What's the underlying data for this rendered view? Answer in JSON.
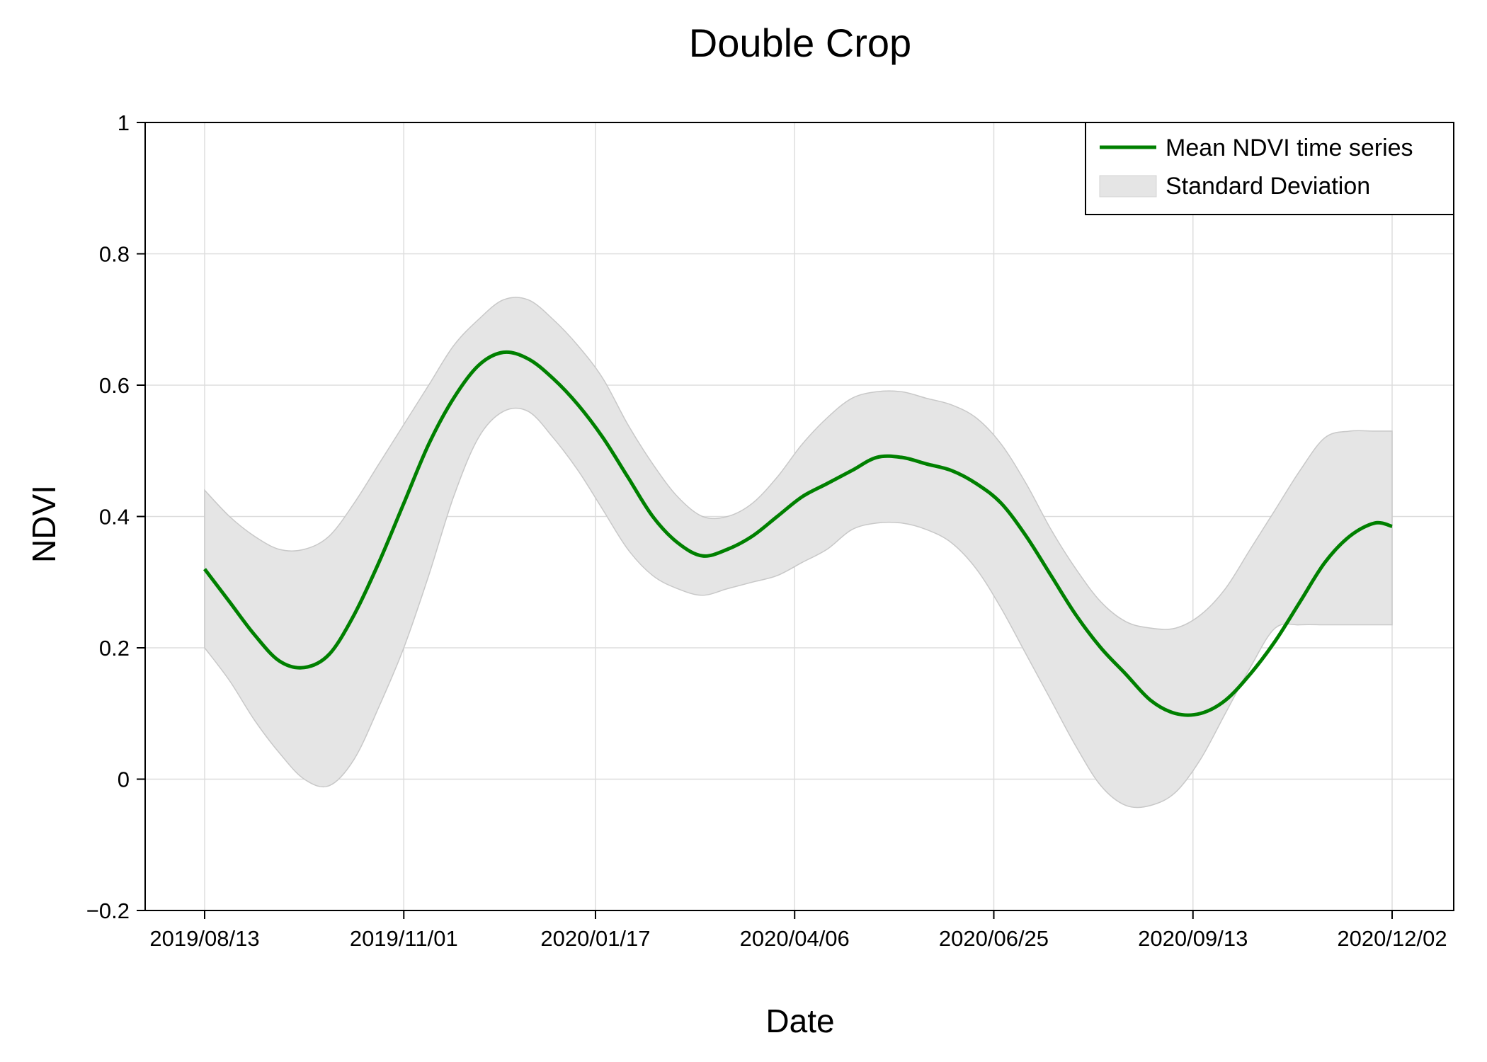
{
  "chart_data": {
    "type": "line",
    "title": "Double Crop",
    "xlabel": "Date",
    "ylabel": "NDVI",
    "ylim": [
      -0.2,
      1
    ],
    "y_ticks": [
      -0.2,
      0,
      0.2,
      0.4,
      0.6,
      0.8,
      1
    ],
    "y_tick_labels": [
      "−0.2",
      "0",
      "0.2",
      "0.4",
      "0.6",
      "0.8",
      "1"
    ],
    "x_ticks": [
      "2019/08/13",
      "2019/11/01",
      "2020/01/17",
      "2020/04/06",
      "2020/06/25",
      "2020/09/13",
      "2020/12/02"
    ],
    "grid": true,
    "legend_position": "top-right",
    "legend": [
      "Mean NDVI time series",
      "Standard Deviation"
    ],
    "colors": {
      "mean": "#008000",
      "band_fill": "#e5e5e5",
      "band_edge": "#c8c8c8",
      "grid": "#dddddd"
    },
    "x": [
      "2019/08/13",
      "2019/08/23",
      "2019/09/02",
      "2019/09/12",
      "2019/09/22",
      "2019/10/02",
      "2019/10/12",
      "2019/10/22",
      "2019/11/01",
      "2019/11/11",
      "2019/11/21",
      "2019/12/01",
      "2019/12/11",
      "2019/12/21",
      "2019/12/31",
      "2020/01/10",
      "2020/01/20",
      "2020/01/30",
      "2020/02/09",
      "2020/02/19",
      "2020/02/29",
      "2020/03/10",
      "2020/03/20",
      "2020/03/30",
      "2020/04/09",
      "2020/04/19",
      "2020/04/29",
      "2020/05/09",
      "2020/05/19",
      "2020/05/29",
      "2020/06/08",
      "2020/06/18",
      "2020/06/28",
      "2020/07/08",
      "2020/07/18",
      "2020/07/28",
      "2020/08/07",
      "2020/08/17",
      "2020/08/27",
      "2020/09/06",
      "2020/09/16",
      "2020/09/26",
      "2020/10/06",
      "2020/10/16",
      "2020/10/26",
      "2020/11/05",
      "2020/11/15",
      "2020/11/25",
      "2020/12/02"
    ],
    "series": [
      {
        "name": "Mean NDVI time series",
        "values": [
          0.32,
          0.27,
          0.22,
          0.18,
          0.17,
          0.19,
          0.25,
          0.33,
          0.42,
          0.51,
          0.58,
          0.63,
          0.65,
          0.64,
          0.61,
          0.57,
          0.52,
          0.46,
          0.4,
          0.36,
          0.34,
          0.35,
          0.37,
          0.4,
          0.43,
          0.45,
          0.47,
          0.49,
          0.49,
          0.48,
          0.47,
          0.45,
          0.42,
          0.37,
          0.31,
          0.25,
          0.2,
          0.16,
          0.12,
          0.1,
          0.1,
          0.12,
          0.16,
          0.21,
          0.27,
          0.33,
          0.37,
          0.39,
          0.385
        ]
      },
      {
        "name": "Standard Deviation",
        "upper": [
          0.44,
          0.4,
          0.37,
          0.35,
          0.35,
          0.37,
          0.42,
          0.48,
          0.54,
          0.6,
          0.66,
          0.7,
          0.73,
          0.73,
          0.7,
          0.66,
          0.61,
          0.54,
          0.48,
          0.43,
          0.4,
          0.4,
          0.42,
          0.46,
          0.51,
          0.55,
          0.58,
          0.59,
          0.59,
          0.58,
          0.57,
          0.55,
          0.51,
          0.45,
          0.38,
          0.32,
          0.27,
          0.24,
          0.23,
          0.23,
          0.25,
          0.29,
          0.35,
          0.41,
          0.47,
          0.52,
          0.53,
          0.53,
          0.53
        ],
        "lower": [
          0.2,
          0.15,
          0.09,
          0.04,
          0.0,
          -0.01,
          0.03,
          0.11,
          0.2,
          0.31,
          0.43,
          0.52,
          0.56,
          0.56,
          0.52,
          0.47,
          0.41,
          0.35,
          0.31,
          0.29,
          0.28,
          0.29,
          0.3,
          0.31,
          0.33,
          0.35,
          0.38,
          0.39,
          0.39,
          0.38,
          0.36,
          0.32,
          0.26,
          0.19,
          0.12,
          0.05,
          -0.01,
          -0.04,
          -0.04,
          -0.02,
          0.03,
          0.1,
          0.17,
          0.23,
          0.235,
          0.235,
          0.235,
          0.235,
          0.235
        ]
      }
    ]
  }
}
